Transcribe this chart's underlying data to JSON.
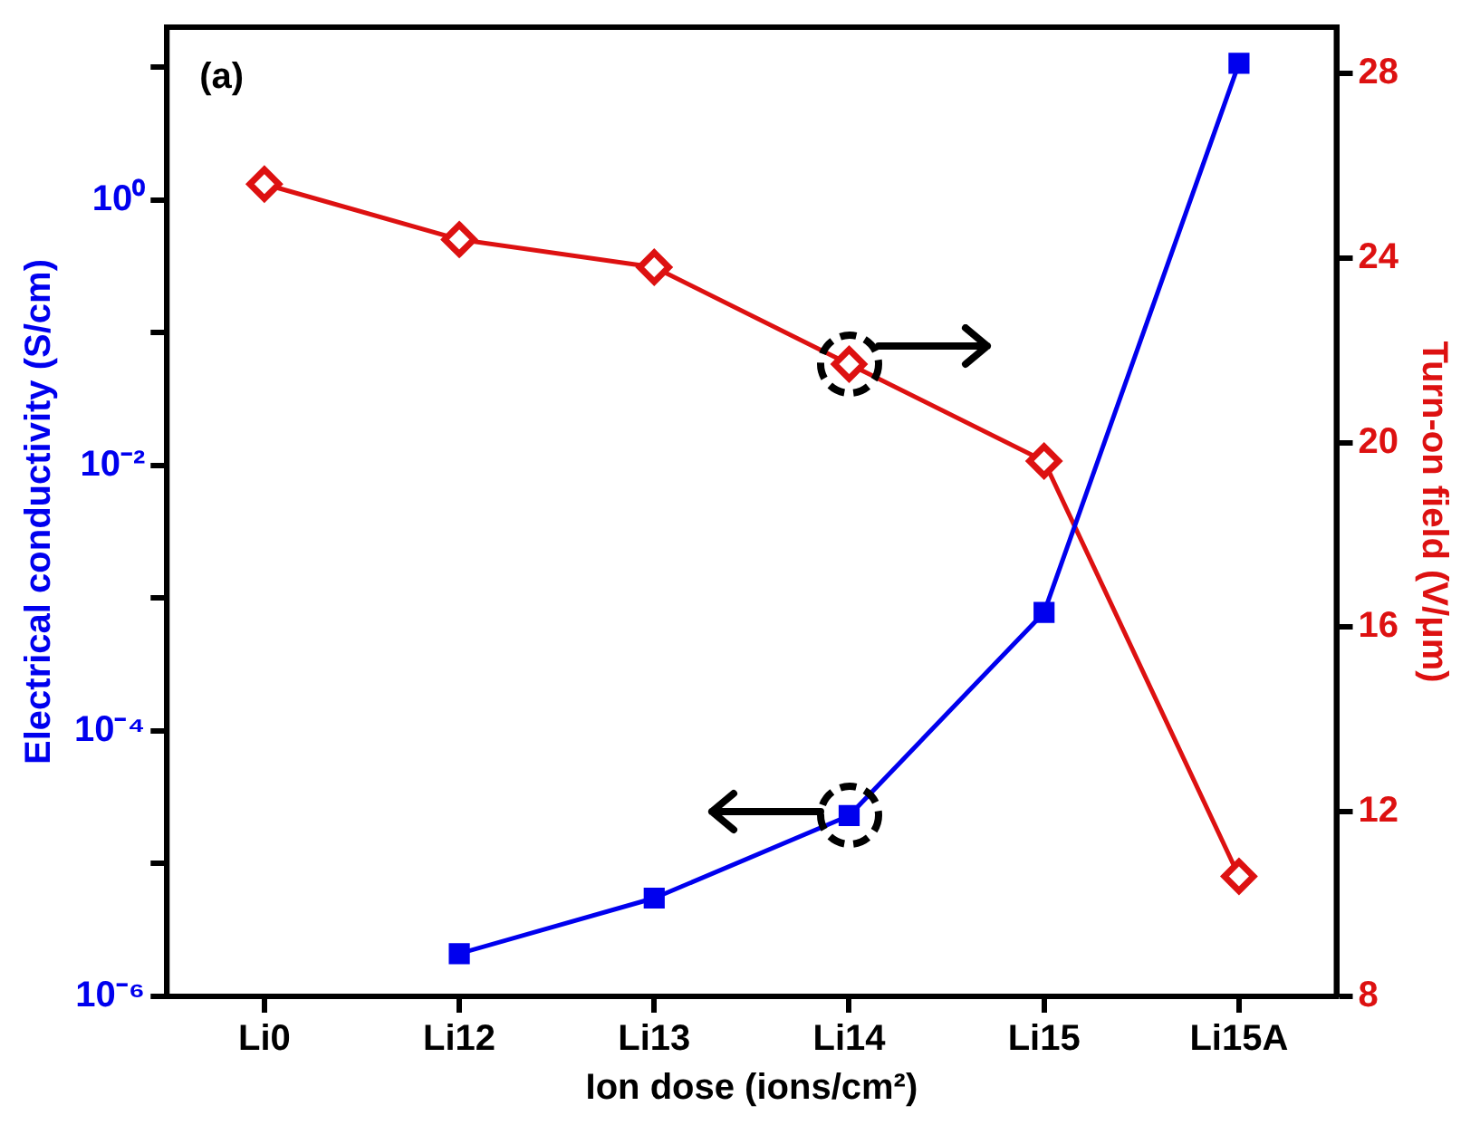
{
  "chart_data": {
    "type": "line",
    "xlabel": "Ion dose (ions/cm²)",
    "ylabel": "Electrical conductivity (S/cm)",
    "y2label": "Turn-on field (V/μm)",
    "categories": [
      "Li0",
      "Li12",
      "Li13",
      "Li14",
      "Li15",
      "Li15A"
    ],
    "series": [
      {
        "color": "#0000ee",
        "marker": "square",
        "values": [
          null,
          2.1e-06,
          5.5e-06,
          2.3e-05,
          0.00078,
          10.7
        ]
      },
      {
        "color": "#dd1111",
        "marker": "diamond",
        "axis": "y2",
        "values": [
          25.6,
          24.4,
          23.8,
          21.7,
          19.6,
          10.6
        ]
      }
    ],
    "log": "y",
    "ylim": [
      1e-06,
      20
    ],
    "yticks": [
      {
        "value": 1e-06,
        "label": "10⁻⁶"
      },
      {
        "value": 1e-05,
        "label": null
      },
      {
        "value": 0.0001,
        "label": "10⁻⁴"
      },
      {
        "value": 0.001,
        "label": null
      },
      {
        "value": 0.01,
        "label": "10⁻²"
      },
      {
        "value": 0.1,
        "label": null
      },
      {
        "value": 1,
        "label": "10⁰"
      },
      {
        "value": 10,
        "label": null
      }
    ],
    "y2lim": [
      8,
      29
    ],
    "y2ticks": [
      8,
      12,
      16,
      20,
      24,
      28
    ],
    "annotations": [
      "(a)"
    ],
    "grid": false,
    "legend": false
  }
}
